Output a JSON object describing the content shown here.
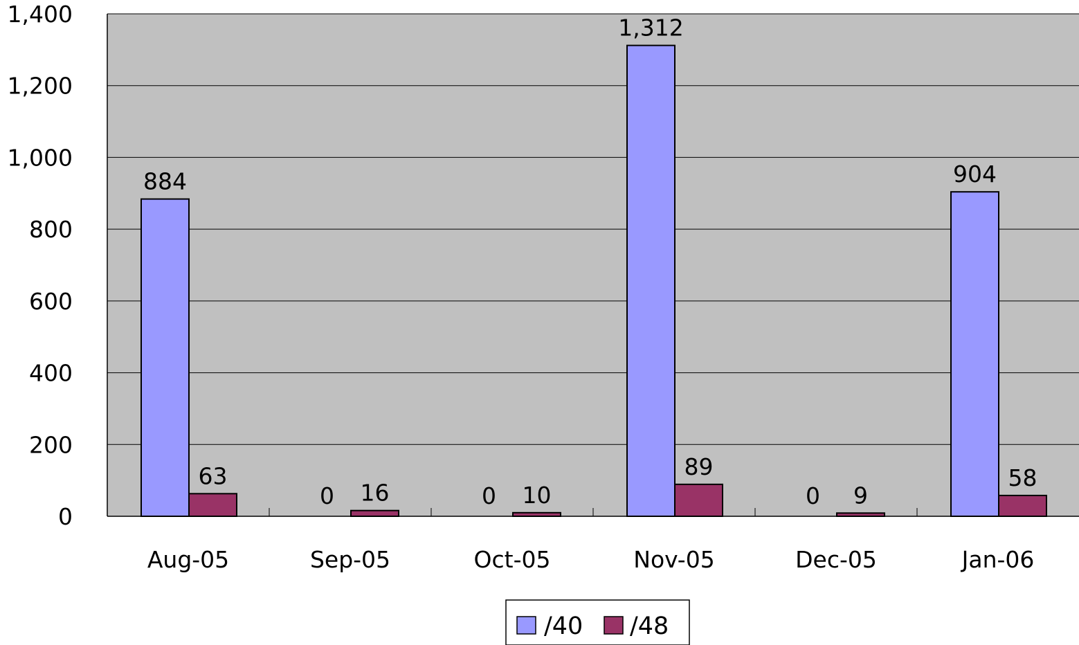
{
  "chart_data": {
    "type": "bar",
    "categories": [
      "Aug-05",
      "Sep-05",
      "Oct-05",
      "Nov-05",
      "Dec-05",
      "Jan-06"
    ],
    "series": [
      {
        "name": "/40",
        "values": [
          884,
          0,
          0,
          1312,
          0,
          904
        ],
        "labels": [
          "884",
          "0",
          "0",
          "1,312",
          "0",
          "904"
        ],
        "color": "#9999ff"
      },
      {
        "name": "/48",
        "values": [
          63,
          16,
          10,
          89,
          9,
          58
        ],
        "labels": [
          "63",
          "16",
          "10",
          "89",
          "9",
          "58"
        ],
        "color": "#993366"
      }
    ],
    "ylim": [
      0,
      1400
    ],
    "yticks": [
      0,
      200,
      400,
      600,
      800,
      1000,
      1200,
      1400
    ],
    "ytick_labels": [
      "0",
      "200",
      "400",
      "600",
      "800",
      "1,000",
      "1,200",
      "1,400"
    ],
    "title": "",
    "xlabel": "",
    "ylabel": "",
    "grid": true,
    "plot_background": "#c0c0c0",
    "legend_position": "bottom-center"
  }
}
